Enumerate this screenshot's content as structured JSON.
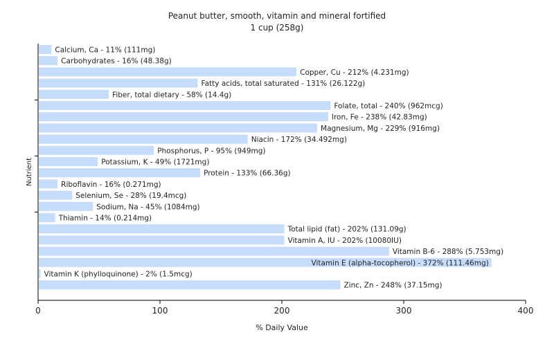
{
  "chart_data": {
    "type": "bar",
    "orientation": "horizontal",
    "title": "Peanut butter, smooth, vitamin and mineral fortified",
    "subtitle": "1 cup (258g)",
    "xlabel": "% Daily Value",
    "ylabel": "Nutrient",
    "xlim": [
      0,
      400
    ],
    "xticks": [
      0,
      100,
      200,
      300,
      400
    ],
    "grid": false,
    "bar_color": "#c6dcfb",
    "categories": [
      "Calcium, Ca",
      "Carbohydrates",
      "Copper, Cu",
      "Fatty acids, total saturated",
      "Fiber, total dietary",
      "Folate, total",
      "Iron, Fe",
      "Magnesium, Mg",
      "Niacin",
      "Phosphorus, P",
      "Potassium, K",
      "Protein",
      "Riboflavin",
      "Selenium, Se",
      "Sodium, Na",
      "Thiamin",
      "Total lipid (fat)",
      "Vitamin A, IU",
      "Vitamin B-6",
      "Vitamin E (alpha-tocopherol)",
      "Vitamin K (phylloquinone)",
      "Zinc, Zn"
    ],
    "values": [
      11,
      16,
      212,
      131,
      58,
      240,
      238,
      229,
      172,
      95,
      49,
      133,
      16,
      28,
      45,
      14,
      202,
      202,
      288,
      372,
      2,
      248
    ],
    "labels": [
      "Calcium, Ca - 11% (111mg)",
      "Carbohydrates - 16% (48.38g)",
      "Copper, Cu - 212% (4.231mg)",
      "Fatty acids, total saturated - 131% (26.122g)",
      "Fiber, total dietary - 58% (14.4g)",
      "Folate, total - 240% (962mcg)",
      "Iron, Fe - 238% (42.83mg)",
      "Magnesium, Mg - 229% (916mg)",
      "Niacin - 172% (34.492mg)",
      "Phosphorus, P - 95% (949mg)",
      "Potassium, K - 49% (1721mg)",
      "Protein - 133% (66.36g)",
      "Riboflavin - 16% (0.271mg)",
      "Selenium, Se - 28% (19.4mcg)",
      "Sodium, Na - 45% (1084mg)",
      "Thiamin - 14% (0.214mg)",
      "Total lipid (fat) - 202% (131.09g)",
      "Vitamin A, IU - 202% (10080IU)",
      "Vitamin B-6 - 288% (5.753mg)",
      "Vitamin E (alpha-tocopherol) - 372% (111.46mg)",
      "Vitamin K (phylloquinone) - 2% (1.5mcg)",
      "Zinc, Zn - 248% (37.15mg)"
    ]
  }
}
